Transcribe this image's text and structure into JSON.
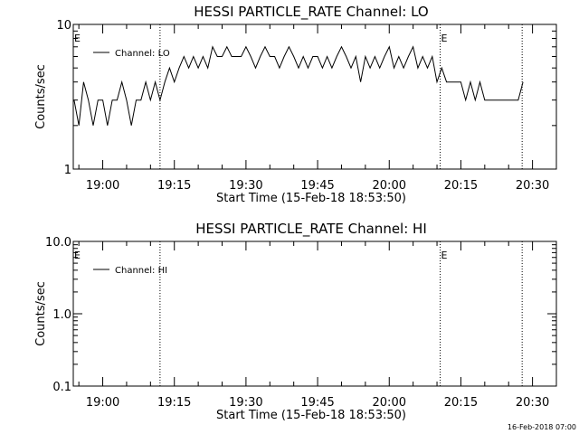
{
  "footer": {
    "stamp": "16-Feb-2018 07:00"
  },
  "chart_data": [
    {
      "type": "line",
      "title": "HESSI PARTICLE_RATE Channel: LO",
      "xlabel": "Start Time (15-Feb-18 18:53:50)",
      "ylabel": "Counts/sec",
      "yscale": "log",
      "ylim": [
        1,
        10
      ],
      "xlim": [
        "18:53:50",
        "20:35:00"
      ],
      "ytick_labels": [
        "1",
        "10"
      ],
      "xtick_labels": [
        "19:00",
        "19:15",
        "19:30",
        "19:45",
        "20:00",
        "20:15",
        "20:30"
      ],
      "legend": {
        "placement": "top-left",
        "entries": [
          "Channel: LO"
        ]
      },
      "markers": [
        {
          "time": "18:53:50",
          "label": "E"
        },
        {
          "time": "20:10:40",
          "label": "E"
        }
      ],
      "dotted_lines": [
        "19:12:00",
        "20:10:40",
        "20:27:50"
      ],
      "series": [
        {
          "name": "Channel: LO",
          "x": [
            "18:54:00",
            "18:55:00",
            "18:56:00",
            "18:57:00",
            "18:58:00",
            "18:59:00",
            "19:00:00",
            "19:01:00",
            "19:02:00",
            "19:03:00",
            "19:04:00",
            "19:05:00",
            "19:06:00",
            "19:07:00",
            "19:08:00",
            "19:09:00",
            "19:10:00",
            "19:11:00",
            "19:12:00",
            "19:13:00",
            "19:14:00",
            "19:15:00",
            "19:16:00",
            "19:17:00",
            "19:18:00",
            "19:19:00",
            "19:20:00",
            "19:21:00",
            "19:22:00",
            "19:23:00",
            "19:24:00",
            "19:25:00",
            "19:26:00",
            "19:27:00",
            "19:28:00",
            "19:29:00",
            "19:30:00",
            "19:31:00",
            "19:32:00",
            "19:33:00",
            "19:34:00",
            "19:35:00",
            "19:36:00",
            "19:37:00",
            "19:38:00",
            "19:39:00",
            "19:40:00",
            "19:41:00",
            "19:42:00",
            "19:43:00",
            "19:44:00",
            "19:45:00",
            "19:46:00",
            "19:47:00",
            "19:48:00",
            "19:49:00",
            "19:50:00",
            "19:51:00",
            "19:52:00",
            "19:53:00",
            "19:54:00",
            "19:55:00",
            "19:56:00",
            "19:57:00",
            "19:58:00",
            "19:59:00",
            "20:00:00",
            "20:01:00",
            "20:02:00",
            "20:03:00",
            "20:04:00",
            "20:05:00",
            "20:06:00",
            "20:07:00",
            "20:08:00",
            "20:09:00",
            "20:10:00",
            "20:11:00",
            "20:12:00",
            "20:13:00",
            "20:14:00",
            "20:15:00",
            "20:16:00",
            "20:17:00",
            "20:18:00",
            "20:19:00",
            "20:20:00",
            "20:21:00",
            "20:22:00",
            "20:23:00",
            "20:24:00",
            "20:25:00",
            "20:26:00",
            "20:27:00",
            "20:28:00"
          ],
          "values": [
            3,
            2,
            4,
            3,
            2,
            3,
            3,
            2,
            3,
            3,
            4,
            3,
            2,
            3,
            3,
            4,
            3,
            4,
            3,
            4,
            5,
            4,
            5,
            6,
            5,
            6,
            5,
            6,
            5,
            7,
            6,
            6,
            7,
            6,
            6,
            6,
            7,
            6,
            5,
            6,
            7,
            6,
            6,
            5,
            6,
            7,
            6,
            5,
            6,
            5,
            6,
            6,
            5,
            6,
            5,
            6,
            7,
            6,
            5,
            6,
            4,
            6,
            5,
            6,
            5,
            6,
            7,
            5,
            6,
            5,
            6,
            7,
            5,
            6,
            5,
            6,
            4,
            5,
            4,
            4,
            4,
            4,
            3,
            4,
            3,
            4,
            3,
            3,
            3,
            3,
            3,
            3,
            3,
            3,
            4
          ]
        }
      ]
    },
    {
      "type": "line",
      "title": "HESSI PARTICLE_RATE Channel: HI",
      "xlabel": "Start Time (15-Feb-18 18:53:50)",
      "ylabel": "Counts/sec",
      "yscale": "log",
      "ylim": [
        0.1,
        10
      ],
      "xlim": [
        "18:53:50",
        "20:35:00"
      ],
      "ytick_labels": [
        "0.1",
        "1.0",
        "10.0"
      ],
      "xtick_labels": [
        "19:00",
        "19:15",
        "19:30",
        "19:45",
        "20:00",
        "20:15",
        "20:30"
      ],
      "legend": {
        "placement": "top-left",
        "entries": [
          "Channel: HI"
        ]
      },
      "markers": [
        {
          "time": "18:53:50",
          "label": "E"
        },
        {
          "time": "20:10:40",
          "label": "E"
        }
      ],
      "dotted_lines": [
        "19:12:00",
        "20:10:40",
        "20:27:50"
      ],
      "series": [
        {
          "name": "Channel: HI",
          "x": [],
          "values": []
        }
      ]
    }
  ]
}
